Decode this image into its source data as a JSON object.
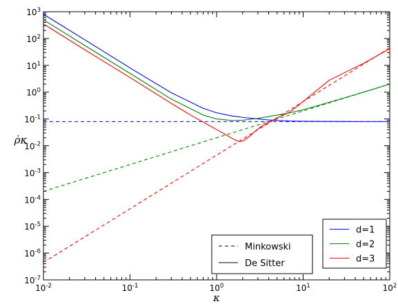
{
  "chart_data": {
    "type": "line",
    "xlabel": "κ",
    "ylabel": "ρ̇κ",
    "x_scale": "log",
    "y_scale": "log",
    "xlim": [
      0.01,
      100
    ],
    "ylim": [
      1e-07,
      1000
    ],
    "grid": false,
    "x_ticks": [
      {
        "value": 0.01,
        "base": "10",
        "exp": "-2"
      },
      {
        "value": 0.1,
        "base": "10",
        "exp": "-1"
      },
      {
        "value": 1,
        "base": "10",
        "exp": "0"
      },
      {
        "value": 10,
        "base": "10",
        "exp": "1"
      },
      {
        "value": 100,
        "base": "10",
        "exp": "2"
      }
    ],
    "y_ticks": [
      {
        "value": 1e-07,
        "base": "10",
        "exp": "-7"
      },
      {
        "value": 1e-06,
        "base": "10",
        "exp": "-6"
      },
      {
        "value": 1e-05,
        "base": "10",
        "exp": "-5"
      },
      {
        "value": 0.0001,
        "base": "10",
        "exp": "-4"
      },
      {
        "value": 0.001,
        "base": "10",
        "exp": "-3"
      },
      {
        "value": 0.01,
        "base": "10",
        "exp": "-2"
      },
      {
        "value": 0.1,
        "base": "10",
        "exp": "-1"
      },
      {
        "value": 1,
        "base": "10",
        "exp": "0"
      },
      {
        "value": 10,
        "base": "10",
        "exp": "1"
      },
      {
        "value": 100,
        "base": "10",
        "exp": "2"
      },
      {
        "value": 1000,
        "base": "10",
        "exp": "3"
      }
    ],
    "series": [
      {
        "name": "d=1",
        "color": "#0000ff",
        "style": "dashed",
        "family": "Minkowski",
        "x": [
          0.01,
          100
        ],
        "y": [
          0.08,
          0.08
        ]
      },
      {
        "name": "d=2",
        "color": "#008000",
        "style": "dashed",
        "family": "Minkowski",
        "x": [
          0.01,
          0.1,
          1,
          5,
          10,
          100
        ],
        "y": [
          0.0002,
          0.002,
          0.02,
          0.1,
          0.2,
          2
        ]
      },
      {
        "name": "d=3",
        "color": "#ff0000",
        "style": "dashed",
        "family": "Minkowski",
        "x": [
          0.01,
          0.1,
          1,
          5,
          10,
          100
        ],
        "y": [
          4.5e-07,
          4.5e-05,
          0.0045,
          0.11,
          0.45,
          45
        ]
      },
      {
        "name": "d=1",
        "color": "#0000ff",
        "style": "solid",
        "family": "De Sitter",
        "x": [
          0.01,
          0.03,
          0.1,
          0.3,
          0.7,
          1,
          1.5,
          2,
          3,
          4,
          5,
          7,
          10,
          20,
          50,
          100
        ],
        "y": [
          800,
          90,
          8,
          0.95,
          0.25,
          0.17,
          0.13,
          0.115,
          0.1,
          0.092,
          0.088,
          0.084,
          0.082,
          0.081,
          0.08,
          0.08
        ]
      },
      {
        "name": "d=2",
        "color": "#008000",
        "style": "solid",
        "family": "De Sitter",
        "x": [
          0.01,
          0.03,
          0.1,
          0.3,
          0.7,
          1,
          1.5,
          2,
          3,
          5,
          7,
          10,
          20,
          50,
          100
        ],
        "y": [
          500,
          55,
          5,
          0.55,
          0.14,
          0.1,
          0.088,
          0.09,
          0.105,
          0.14,
          0.17,
          0.22,
          0.42,
          1.0,
          2.0
        ]
      },
      {
        "name": "d=3",
        "color": "#ff0000",
        "style": "solid",
        "family": "De Sitter",
        "x": [
          0.01,
          0.03,
          0.1,
          0.3,
          0.5,
          0.8,
          1,
          1.3,
          1.6,
          1.8,
          2,
          2.3,
          2.7,
          3.2,
          4,
          5,
          7,
          10,
          20,
          50,
          100
        ],
        "y": [
          350,
          38,
          3.5,
          0.38,
          0.14,
          0.06,
          0.04,
          0.025,
          0.017,
          0.0145,
          0.015,
          0.02,
          0.032,
          0.05,
          0.075,
          0.11,
          0.18,
          0.45,
          2.8,
          12,
          42
        ]
      }
    ],
    "legends": [
      {
        "position": "bottom-right",
        "entries": [
          {
            "label": "d=1",
            "color": "#0000ff",
            "style": "solid"
          },
          {
            "label": "d=2",
            "color": "#008000",
            "style": "solid"
          },
          {
            "label": "d=3",
            "color": "#ff0000",
            "style": "solid"
          }
        ]
      },
      {
        "position": "bottom-center",
        "entries": [
          {
            "label": "Minkowski",
            "color": "#000000",
            "style": "dashed"
          },
          {
            "label": "De Sitter",
            "color": "#000000",
            "style": "solid"
          }
        ]
      }
    ]
  }
}
